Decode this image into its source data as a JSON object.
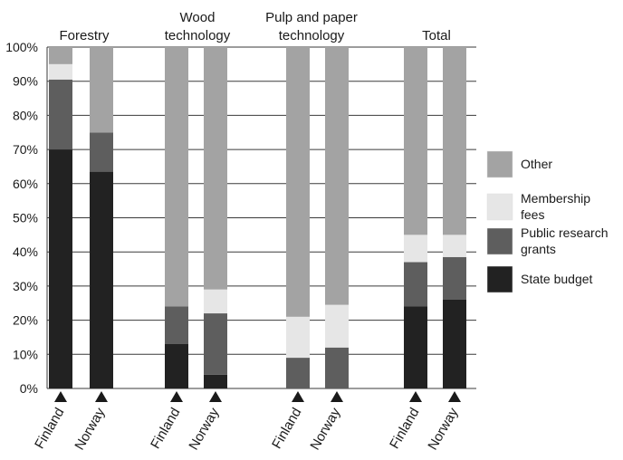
{
  "chart_data": {
    "type": "bar",
    "stacked": true,
    "normalized": true,
    "groups": [
      {
        "title": [
          "Forestry"
        ],
        "categories": [
          "Finland",
          "Norway"
        ]
      },
      {
        "title": [
          "Wood",
          "technology"
        ],
        "categories": [
          "Finland",
          "Norway"
        ]
      },
      {
        "title": [
          "Pulp and paper",
          "technology"
        ],
        "categories": [
          "Finland",
          "Norway"
        ]
      },
      {
        "title": [
          "Total"
        ],
        "categories": [
          "Finland",
          "Norway"
        ]
      }
    ],
    "series": [
      {
        "name": "State budget",
        "values": [
          70,
          63.5,
          13,
          4,
          0,
          0,
          24,
          26
        ]
      },
      {
        "name": "Public research grants",
        "values": [
          20.5,
          11.5,
          11,
          18,
          9,
          12,
          13,
          12.5
        ]
      },
      {
        "name": "Membership fees",
        "values": [
          4.5,
          0,
          0,
          7,
          12,
          12.5,
          8,
          6.5
        ]
      },
      {
        "name": "Other",
        "values": [
          5,
          25,
          76,
          71,
          79,
          75.5,
          55,
          55
        ]
      }
    ],
    "y_ticks": [
      "0%",
      "10%",
      "20%",
      "30%",
      "40%",
      "50%",
      "60%",
      "70%",
      "80%",
      "90%",
      "100%"
    ],
    "ylim": [
      0,
      100
    ],
    "grid": "horizontal",
    "legend": {
      "placement": "right",
      "entries": [
        {
          "series": "Other",
          "lines": [
            "Other"
          ]
        },
        {
          "series": "Membership fees",
          "lines": [
            "Membership",
            "fees"
          ]
        },
        {
          "series": "Public research grants",
          "lines": [
            "Public research",
            "grants"
          ]
        },
        {
          "series": "State budget",
          "lines": [
            "State budget"
          ]
        }
      ]
    },
    "colors": {
      "State budget": "#222222",
      "Public research grants": "#5e5e5e",
      "Membership fees": "#e6e6e6",
      "Other": "#a3a3a3"
    }
  }
}
